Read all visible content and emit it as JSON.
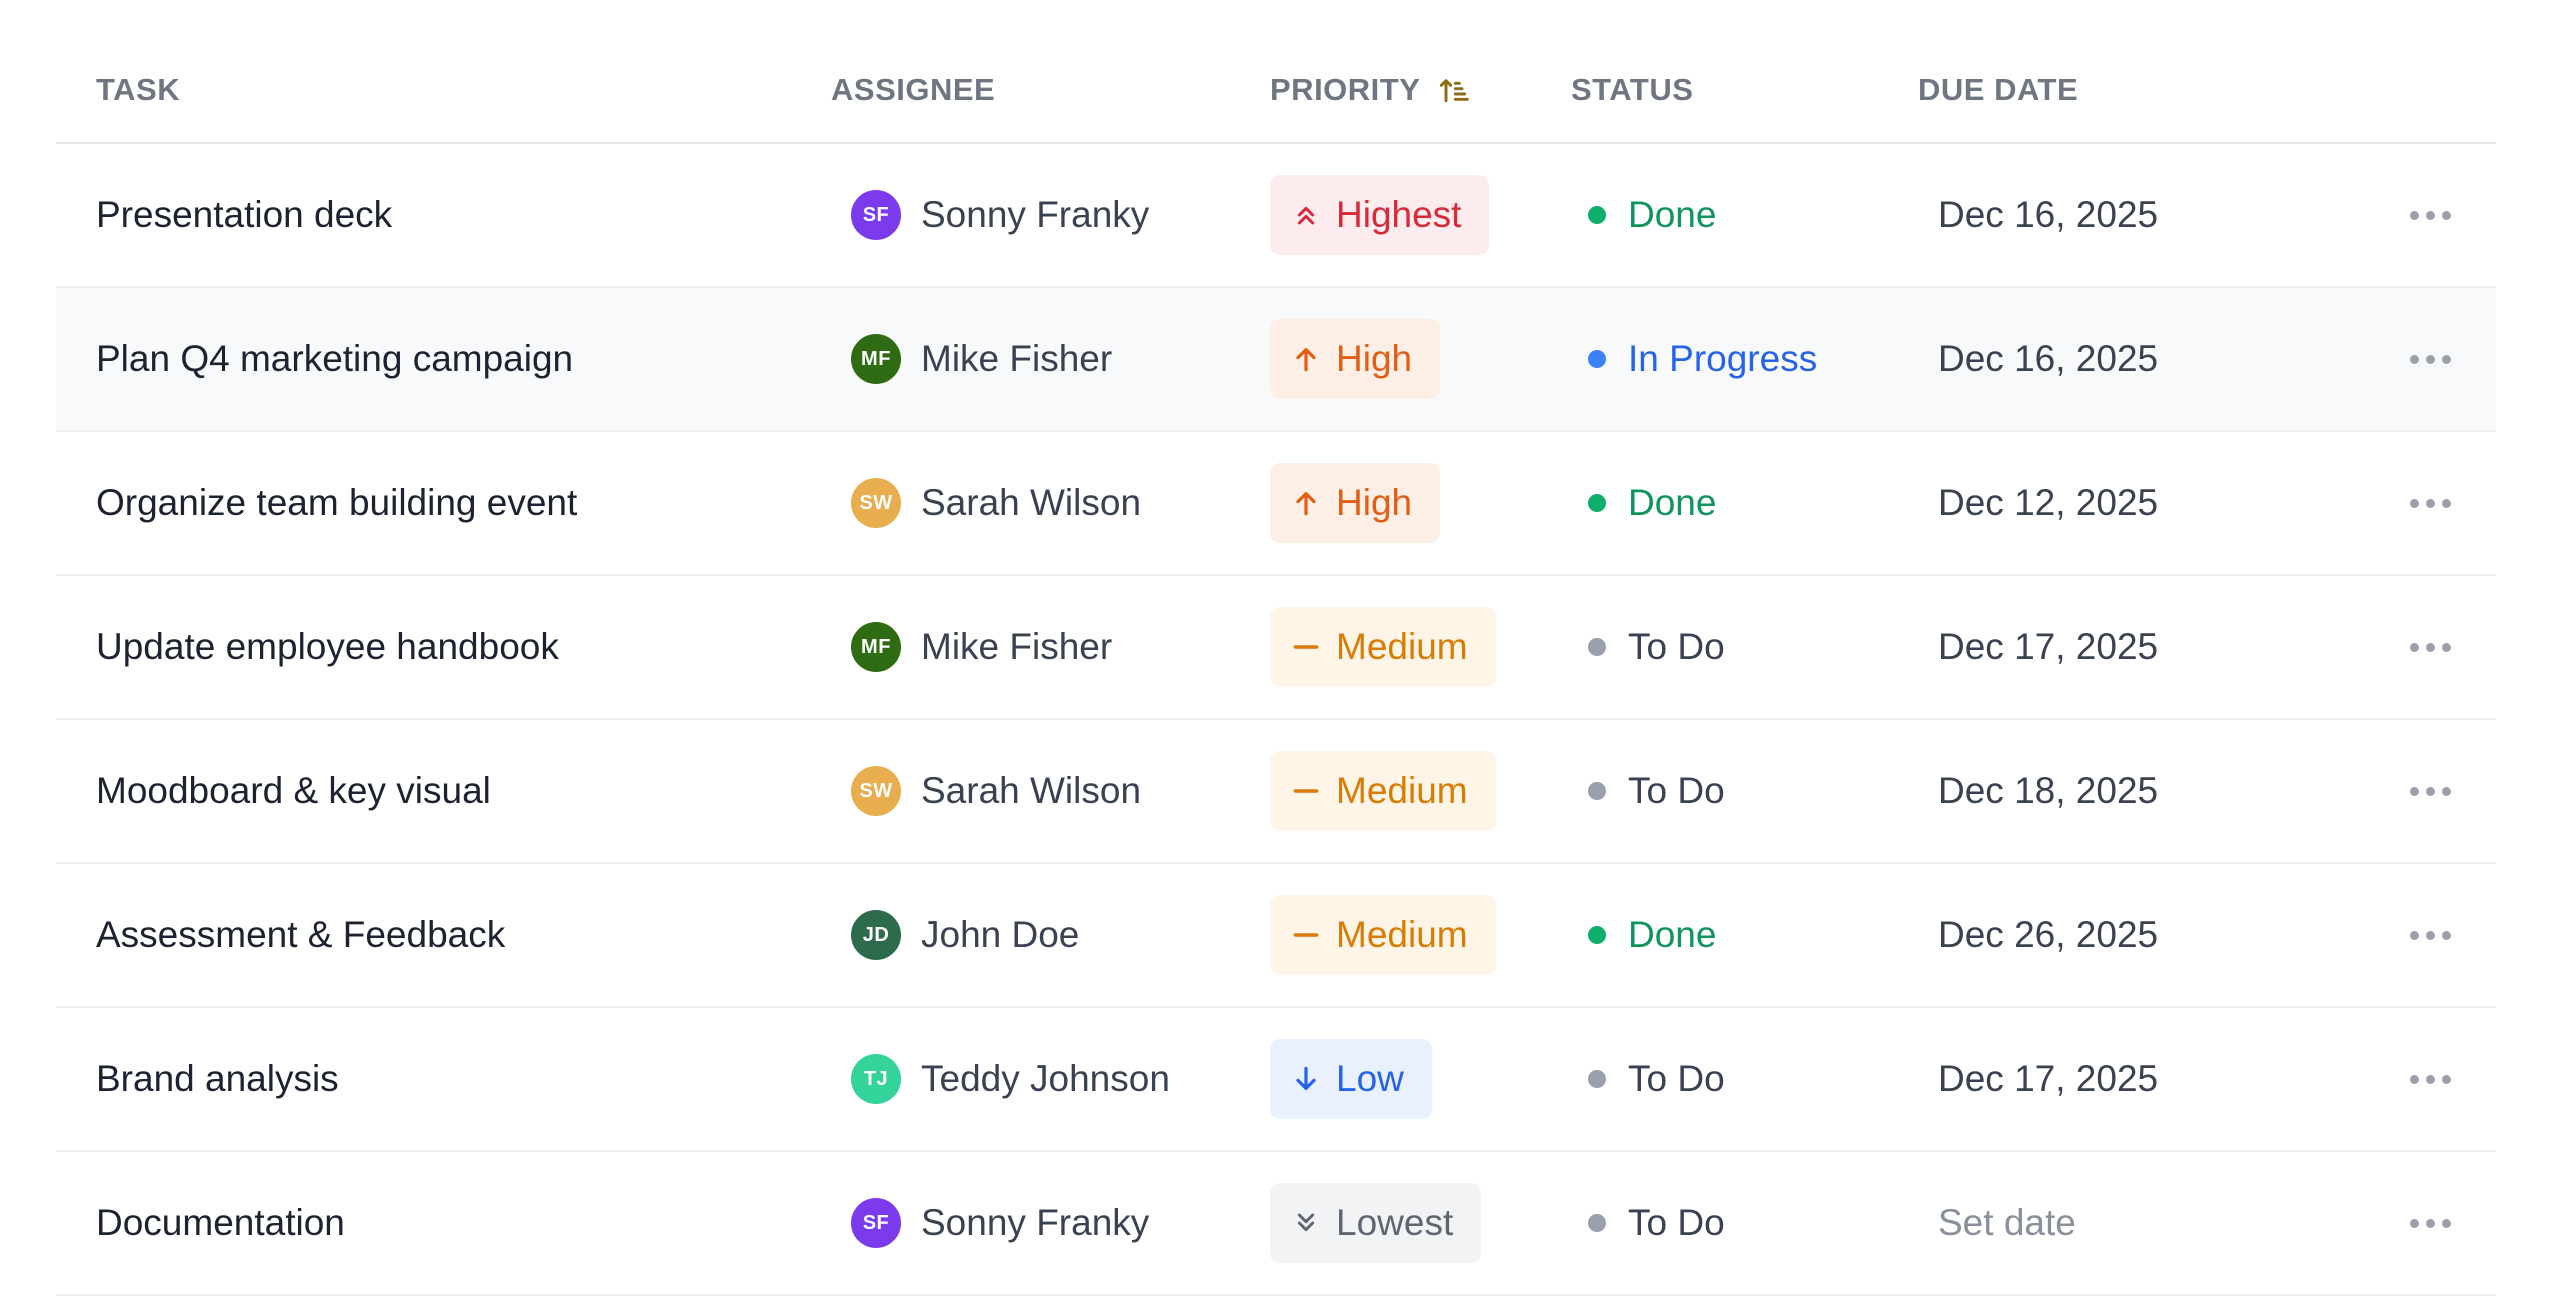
{
  "columns": {
    "task": "TASK",
    "assignee": "ASSIGNEE",
    "priority": "PRIORITY",
    "status": "STATUS",
    "due_date": "DUE DATE",
    "sort_icon": "sort-ascending-icon"
  },
  "priority_styles": {
    "Highest": {
      "bg": "#fdecee",
      "fg": "#d8283a",
      "icon": "chevrons-up-icon"
    },
    "High": {
      "bg": "#fdeee6",
      "fg": "#e35d14",
      "icon": "arrow-up-icon"
    },
    "Medium": {
      "bg": "#fff5e6",
      "fg": "#d97c06",
      "icon": "minus-icon"
    },
    "Low": {
      "bg": "#e9f1fe",
      "fg": "#2563eb",
      "icon": "arrow-down-icon"
    },
    "Lowest": {
      "bg": "#f2f3f5",
      "fg": "#5f6672",
      "icon": "chevrons-down-icon"
    }
  },
  "status_styles": {
    "Done": {
      "dot": "#10b06b",
      "fg": "#0f9460"
    },
    "In Progress": {
      "dot": "#3b82f6",
      "fg": "#2563eb"
    },
    "To Do": {
      "dot": "#9aa0ab",
      "fg": "#3a4150"
    }
  },
  "rows": [
    {
      "task": "Presentation deck",
      "initials": "SF",
      "assignee": "Sonny Franky",
      "avatar_color": "#7c3aed",
      "priority": "Highest",
      "status": "Done",
      "due_date": "Dec 16, 2025"
    },
    {
      "task": "Plan Q4 marketing campaign",
      "initials": "MF",
      "assignee": "Mike Fisher",
      "avatar_color": "#2f6b12",
      "priority": "High",
      "status": "In Progress",
      "due_date": "Dec 16, 2025"
    },
    {
      "task": "Organize team building event",
      "initials": "SW",
      "assignee": "Sarah Wilson",
      "avatar_color": "#e8ad4f",
      "priority": "High",
      "status": "Done",
      "due_date": "Dec 12, 2025"
    },
    {
      "task": "Update employee handbook",
      "initials": "MF",
      "assignee": "Mike Fisher",
      "avatar_color": "#2f6b12",
      "priority": "Medium",
      "status": "To Do",
      "due_date": "Dec 17, 2025"
    },
    {
      "task": "Moodboard & key visual",
      "initials": "SW",
      "assignee": "Sarah Wilson",
      "avatar_color": "#e8ad4f",
      "priority": "Medium",
      "status": "To Do",
      "due_date": "Dec 18, 2025"
    },
    {
      "task": "Assessment & Feedback",
      "initials": "JD",
      "assignee": "John Doe",
      "avatar_color": "#2d6b4d",
      "priority": "Medium",
      "status": "Done",
      "due_date": "Dec 26, 2025"
    },
    {
      "task": "Brand analysis",
      "initials": "TJ",
      "assignee": "Teddy Johnson",
      "avatar_color": "#34d399",
      "priority": "Low",
      "status": "To Do",
      "due_date": "Dec 17, 2025"
    },
    {
      "task": "Documentation",
      "initials": "SF",
      "assignee": "Sonny Franky",
      "avatar_color": "#7c3aed",
      "priority": "Lowest",
      "status": "To Do",
      "due_date": "Set date"
    }
  ],
  "hovered_row": 1,
  "row_menu_icon": "more-horizontal-icon"
}
